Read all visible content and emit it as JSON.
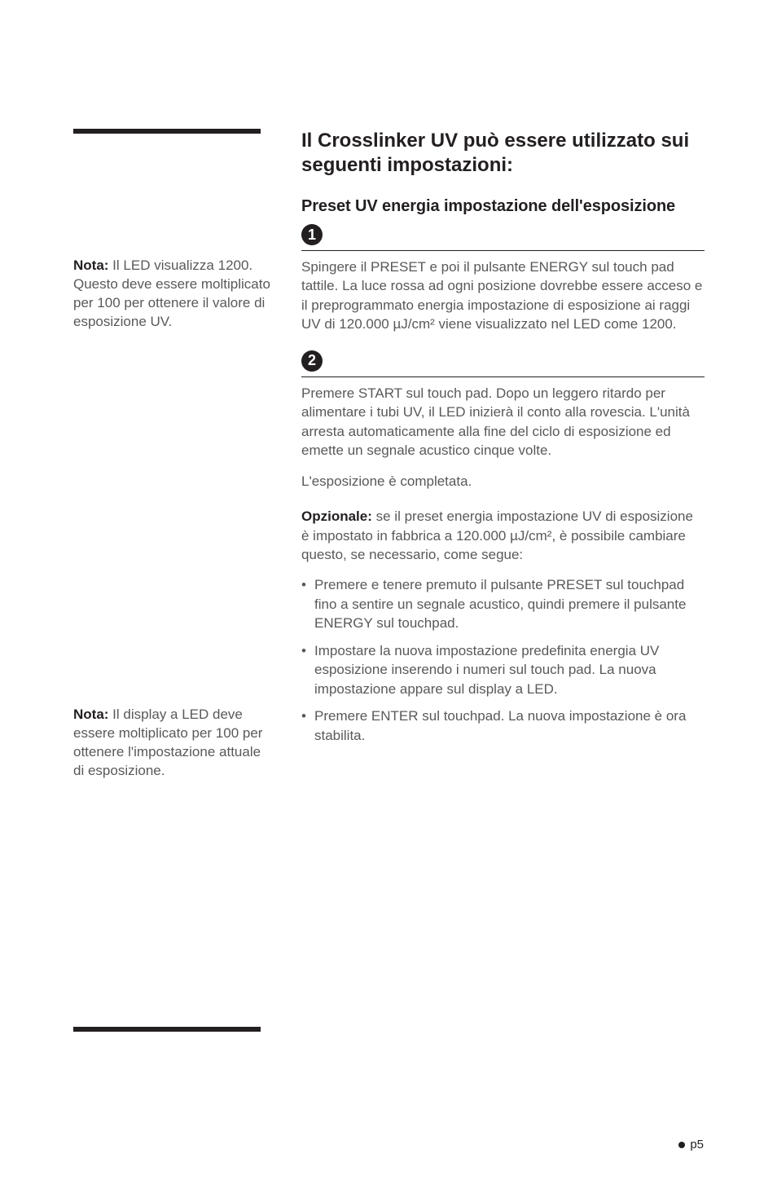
{
  "sidebar": {
    "note1_label": "Nota:",
    "note1_text": " Il LED visualizza 1200. Questo deve essere moltiplicato per 100 per ottenere il valore di esposizione UV.",
    "note2_label": "Nota:",
    "note2_text": " Il display a LED deve essere moltiplicato per 100 per ottenere l'impostazione attuale di esposizione."
  },
  "main": {
    "title": "Il Crosslinker UV può essere utilizzato sui seguenti impostazioni:",
    "subtitle": "Preset UV energia impostazione dell'esposizione",
    "step1_num": "1",
    "step1_text": "Spingere il PRESET e poi il pulsante ENERGY sul touch pad tattile. La luce rossa ad ogni posizione dovrebbe essere acceso e il preprogrammato energia impostazione di esposizione ai raggi UV di 120.000 µJ/cm² viene visualizzato nel LED come 1200.",
    "step2_num": "2",
    "step2_text": "Premere START sul touch pad. Dopo un leggero ritardo per alimentare i tubi UV, il LED inizierà il conto alla rovescia. L'unità arresta automaticamente alla fine del ciclo di esposizione ed emette un segnale acustico cinque volte.",
    "complete_text": "L'esposizione è completata.",
    "optional_label": "Opzionale:",
    "optional_text": " se il preset energia impostazione UV di esposizione è impostato in fabbrica a 120.000 µJ/cm², è possibile cambiare questo, se necessario, come segue:",
    "bullets": [
      "Premere e tenere premuto il pulsante PRESET sul touchpad fino a sentire un segnale acustico, quindi premere il pulsante ENERGY sul touchpad.",
      "Impostare la nuova impostazione predefinita energia UV esposizione inserendo i numeri sul touch pad. La nuova impostazione appare sul display a LED.",
      "Premere ENTER sul touchpad. La nuova impostazione è ora stabilita."
    ]
  },
  "footer": {
    "page": "p5"
  },
  "colors": {
    "text_primary": "#231f20",
    "text_secondary": "#58595b",
    "background": "#ffffff"
  }
}
